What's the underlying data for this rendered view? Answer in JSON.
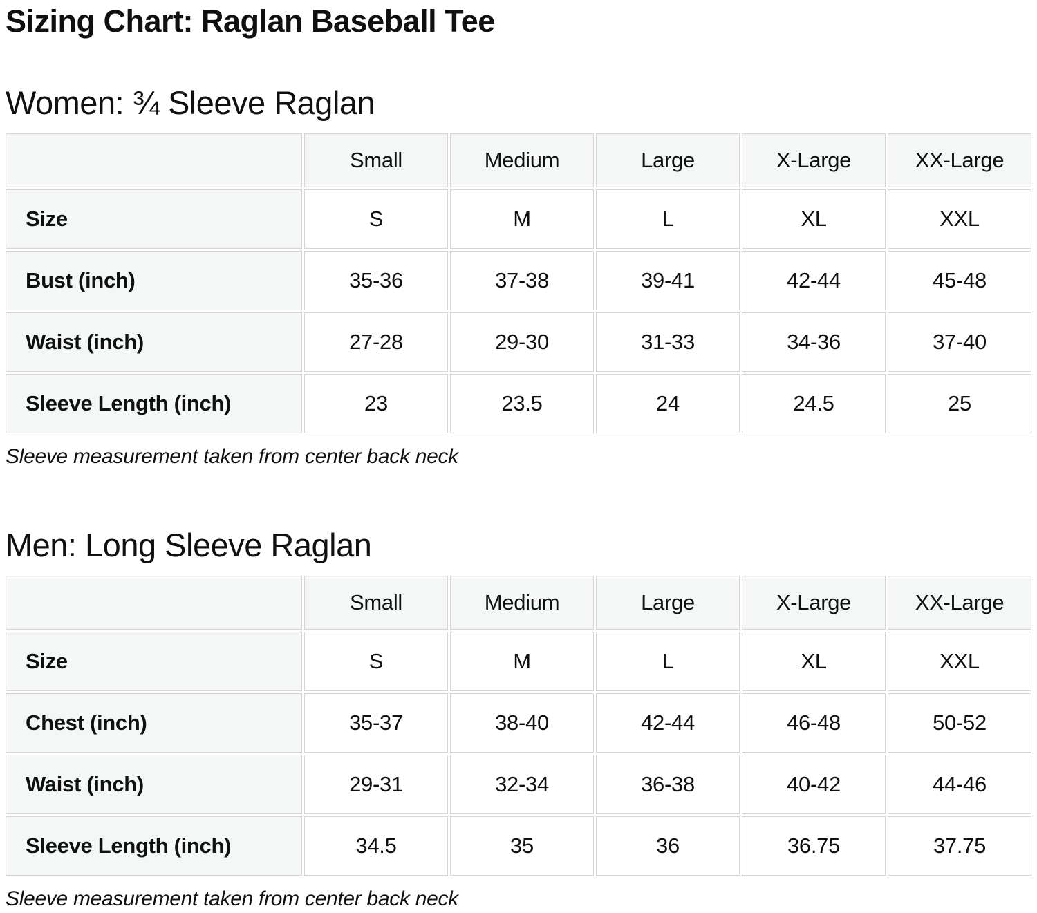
{
  "page": {
    "title": "Sizing Chart: Raglan Baseball Tee"
  },
  "sections": [
    {
      "heading": "Women: ¾ Sleeve Raglan",
      "note": "Sleeve measurement taken from center back neck",
      "table": {
        "col_headers": [
          "",
          "Small",
          "Medium",
          "Large",
          "X-Large",
          "XX-Large"
        ],
        "rows": [
          {
            "label": "Size",
            "values": [
              "S",
              "M",
              "L",
              "XL",
              "XXL"
            ]
          },
          {
            "label": "Bust (inch)",
            "values": [
              "35-36",
              "37-38",
              "39-41",
              "42-44",
              "45-48"
            ]
          },
          {
            "label": "Waist (inch)",
            "values": [
              "27-28",
              "29-30",
              "31-33",
              "34-36",
              "37-40"
            ]
          },
          {
            "label": "Sleeve Length (inch)",
            "values": [
              "23",
              "23.5",
              "24",
              "24.5",
              "25"
            ]
          }
        ]
      }
    },
    {
      "heading": "Men: Long Sleeve Raglan",
      "note": "Sleeve measurement taken from center back neck",
      "table": {
        "col_headers": [
          "",
          "Small",
          "Medium",
          "Large",
          "X-Large",
          "XX-Large"
        ],
        "rows": [
          {
            "label": "Size",
            "values": [
              "S",
              "M",
              "L",
              "XL",
              "XXL"
            ]
          },
          {
            "label": "Chest (inch)",
            "values": [
              "35-37",
              "38-40",
              "42-44",
              "46-48",
              "50-52"
            ]
          },
          {
            "label": "Waist (inch)",
            "values": [
              "29-31",
              "32-34",
              "36-38",
              "40-42",
              "44-46"
            ]
          },
          {
            "label": "Sleeve Length (inch)",
            "values": [
              "34.5",
              "35",
              "36",
              "36.75",
              "37.75"
            ]
          }
        ]
      }
    }
  ]
}
